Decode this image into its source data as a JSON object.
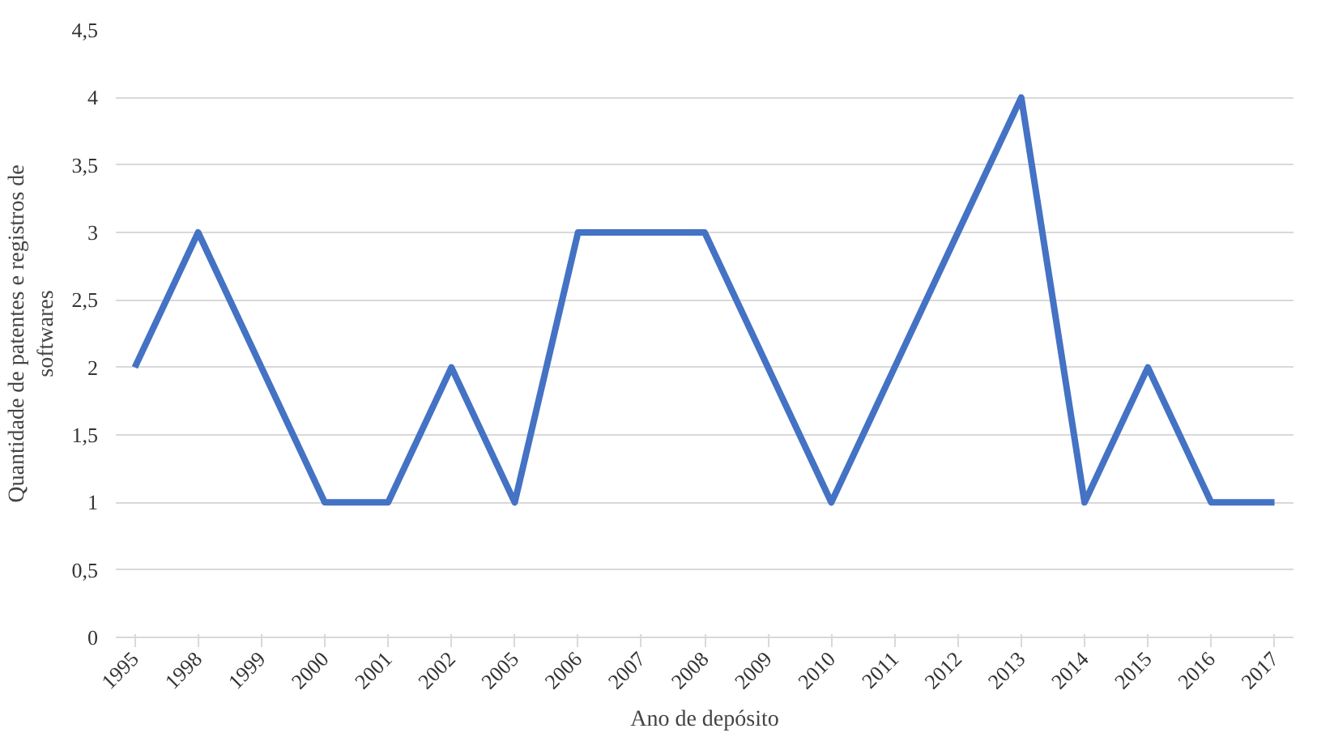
{
  "chart_data": {
    "type": "line",
    "xlabel": "Ano de depósito",
    "ylabel": "Quantidade de patentes e registros de softwares",
    "categories": [
      "1995",
      "1998",
      "1999",
      "2000",
      "2001",
      "2002",
      "2005",
      "2006",
      "2007",
      "2008",
      "2009",
      "2010",
      "2011",
      "2012",
      "2013",
      "2014",
      "2015",
      "2016",
      "2017"
    ],
    "series": [
      {
        "color": "#4472c4",
        "values": [
          2,
          3,
          2,
          1,
          1,
          2,
          1,
          3,
          3,
          3,
          2,
          1,
          2,
          3,
          4,
          1,
          2,
          1,
          1
        ]
      }
    ],
    "ylim": [
      0,
      4.5
    ],
    "yticks": [
      0,
      {
        "value": 0.5,
        "label": "0,5"
      },
      1,
      {
        "value": 1.5,
        "label": "1,5"
      },
      2,
      {
        "value": 2.5,
        "label": "2,5"
      },
      3,
      {
        "value": 3.5,
        "label": "3,5"
      },
      4,
      {
        "value": 4.5,
        "label": "4,5"
      }
    ],
    "grid": "y",
    "marker": "none",
    "line_style": "solid"
  }
}
